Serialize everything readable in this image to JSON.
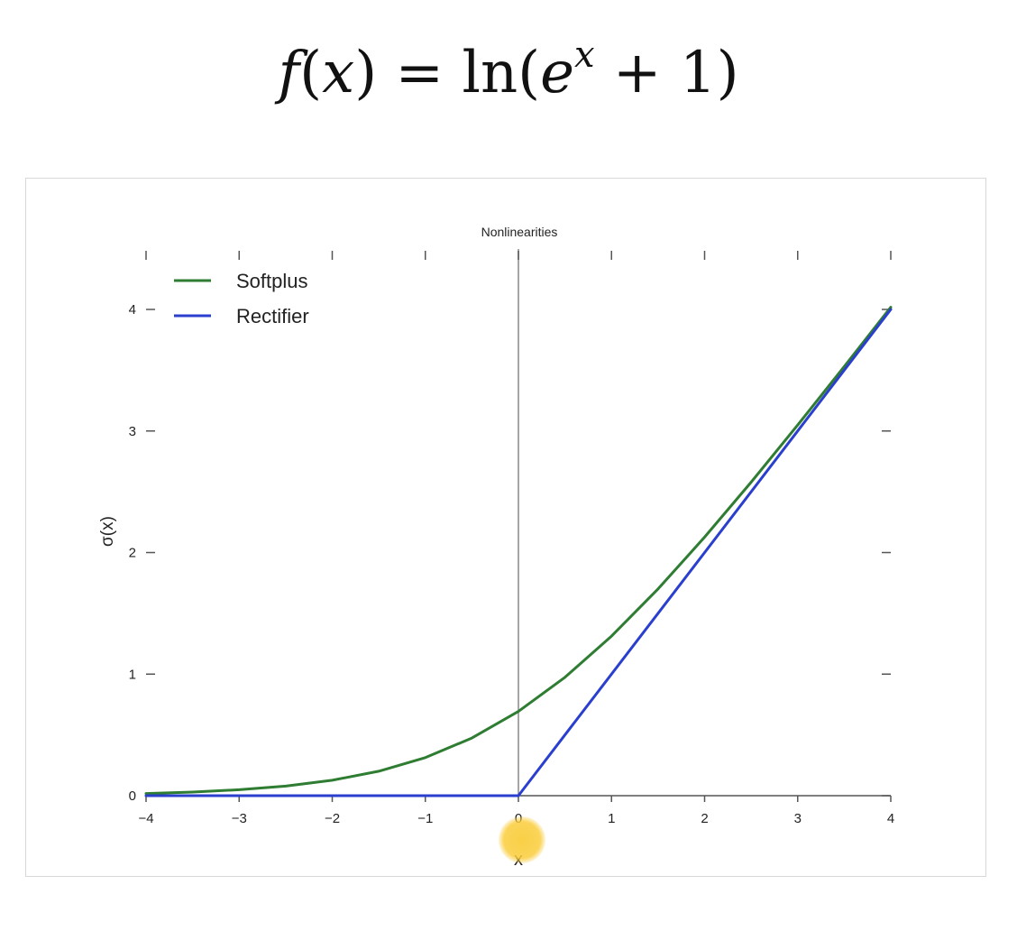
{
  "formula": {
    "lhs": "f",
    "arg": "x",
    "fn": "ln",
    "base": "e",
    "exp": "x",
    "constant": "1"
  },
  "chart_data": {
    "type": "line",
    "title": "Nonlinearities",
    "xlabel": "x",
    "ylabel": "σ(x)",
    "xlim": [
      -4,
      4
    ],
    "ylim": [
      0,
      4
    ],
    "x_ticks": [
      "−4",
      "−3",
      "−2",
      "−1",
      "0",
      "1",
      "2",
      "3",
      "4"
    ],
    "y_ticks": [
      "0",
      "1",
      "2",
      "3",
      "4"
    ],
    "grid": false,
    "legend_position": "top-left",
    "series": [
      {
        "name": "Softplus",
        "color": "#2e7d32",
        "x": [
          -4,
          -3.5,
          -3,
          -2.5,
          -2,
          -1.5,
          -1,
          -0.5,
          0,
          0.5,
          1,
          1.5,
          2,
          2.5,
          3,
          3.5,
          4
        ],
        "y": [
          0.018,
          0.03,
          0.049,
          0.079,
          0.127,
          0.201,
          0.313,
          0.474,
          0.693,
          0.974,
          1.313,
          1.701,
          2.127,
          2.579,
          3.049,
          3.53,
          4.018
        ]
      },
      {
        "name": "Rectifier",
        "color": "#2b3fcf",
        "x": [
          -4,
          0,
          4
        ],
        "y": [
          0,
          0,
          4
        ]
      }
    ]
  }
}
